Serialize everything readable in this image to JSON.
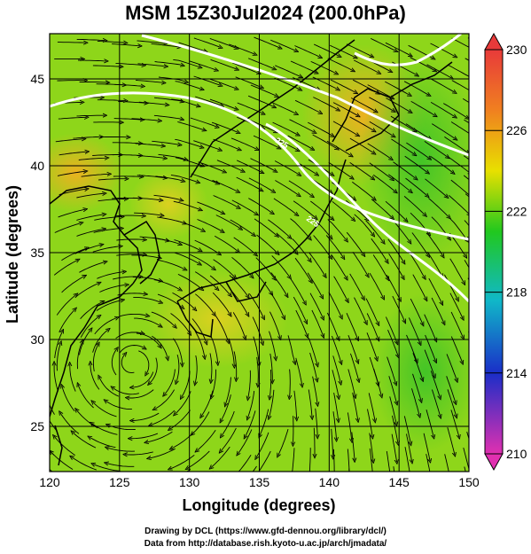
{
  "title": "MSM 15Z30Jul2024 (200.0hPa)",
  "map": {
    "lon_range": [
      120,
      150
    ],
    "lat_range": [
      22.4,
      47.6
    ],
    "lon_ticks": [
      "120",
      "125",
      "130",
      "135",
      "140",
      "145",
      "150"
    ],
    "lat_ticks": [
      "25",
      "30",
      "35",
      "40",
      "45"
    ],
    "xlabel": "Longitude (degrees)",
    "ylabel": "Latitude  (degrees)",
    "contour_label": "225"
  },
  "colorbar": {
    "ticks": [
      "230",
      "226",
      "222",
      "218",
      "214",
      "210"
    ],
    "colors": {
      "max": "#e83a3a",
      "warm": "#f0a020",
      "mid": "#e8e000",
      "green": "#21c81e",
      "cyan": "#10b8c8",
      "blue": "#1a2ec8",
      "min": "#e030b0"
    }
  },
  "field_colors": {
    "base": "#8ed61a",
    "warm": "#e8c020",
    "hot": "#f0a030",
    "cool": "#3ec82a",
    "grid": "#000000",
    "contour": "#ffffff"
  },
  "credits": {
    "line1": "Drawing by DCL (https://www.gfd-dennou.org/library/dcl/)",
    "line2": "Data from http://database.rish.kyoto-u.ac.jp/arch/jmadata/"
  }
}
